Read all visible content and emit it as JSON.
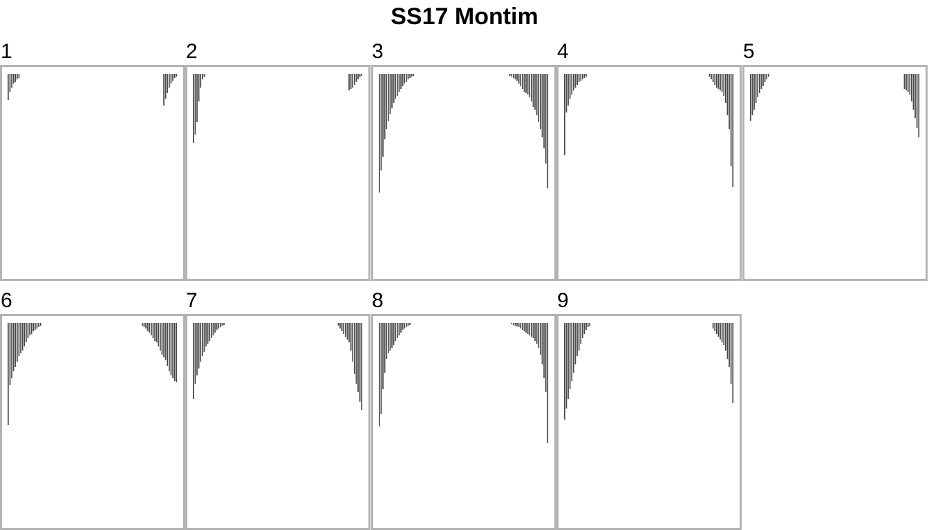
{
  "chart_data": {
    "type": "bar",
    "title": "SS17 Montim",
    "panels": [
      {
        "label": "1",
        "left": [
          38,
          26,
          20,
          14,
          12,
          8,
          6
        ],
        "right": [
          46,
          36,
          28,
          20,
          14,
          10,
          6,
          4
        ]
      },
      {
        "label": "2",
        "left": [
          100,
          88,
          70,
          40,
          20,
          8,
          5
        ],
        "right": [
          24,
          22,
          20,
          16,
          12,
          8,
          5,
          3
        ]
      },
      {
        "label": "3",
        "left": [
          172,
          140,
          120,
          95,
          80,
          68,
          58,
          50,
          42,
          36,
          32,
          26,
          22,
          18,
          14,
          12,
          8,
          6,
          4,
          3
        ],
        "right": [
          3,
          4,
          6,
          8,
          10,
          14,
          18,
          22,
          26,
          28,
          30,
          34,
          40,
          48,
          52,
          60,
          70,
          80,
          92,
          108,
          130,
          166
        ]
      },
      {
        "label": "4",
        "left": [
          118,
          56,
          46,
          36,
          30,
          24,
          20,
          16,
          12,
          10,
          8,
          6,
          4
        ],
        "right": [
          4,
          8,
          12,
          16,
          20,
          22,
          24,
          26,
          32,
          42,
          60,
          80,
          134,
          164
        ]
      },
      {
        "label": "5",
        "left": [
          68,
          60,
          52,
          42,
          34,
          28,
          22,
          18,
          12,
          8,
          4
        ],
        "right": [
          22,
          24,
          26,
          30,
          40,
          52,
          64,
          78,
          92
        ]
      },
      {
        "label": "6",
        "left": [
          148,
          90,
          80,
          70,
          64,
          56,
          48,
          44,
          40,
          34,
          28,
          22,
          18,
          16,
          12,
          10,
          8,
          6,
          4
        ],
        "right": [
          4,
          6,
          8,
          12,
          14,
          18,
          22,
          26,
          28,
          34,
          40,
          46,
          50,
          54,
          62,
          70,
          76,
          80,
          84,
          86
        ]
      },
      {
        "label": "7",
        "left": [
          110,
          88,
          76,
          66,
          56,
          48,
          42,
          34,
          30,
          26,
          22,
          18,
          14,
          10,
          8,
          6,
          4,
          3
        ],
        "right": [
          4,
          8,
          12,
          16,
          20,
          24,
          28,
          40,
          56,
          74,
          88,
          100,
          114,
          126
        ]
      },
      {
        "label": "8",
        "left": [
          150,
          132,
          96,
          72,
          52,
          44,
          40,
          36,
          32,
          26,
          22,
          18,
          14,
          10,
          8,
          6,
          4,
          3
        ],
        "right": [
          2,
          3,
          4,
          5,
          6,
          8,
          10,
          12,
          14,
          16,
          18,
          20,
          22,
          26,
          30,
          36,
          46,
          60,
          80,
          100,
          174
        ]
      },
      {
        "label": "9",
        "left": [
          140,
          124,
          110,
          96,
          84,
          72,
          60,
          48,
          40,
          30,
          22,
          16,
          10,
          6,
          4
        ],
        "right": [
          8,
          12,
          16,
          20,
          24,
          28,
          32,
          40,
          52,
          64,
          88,
          116
        ]
      }
    ],
    "style": {
      "bar_color": "#484848",
      "frame_color": "#b3b3b3",
      "grid": false,
      "legend": "none"
    }
  }
}
